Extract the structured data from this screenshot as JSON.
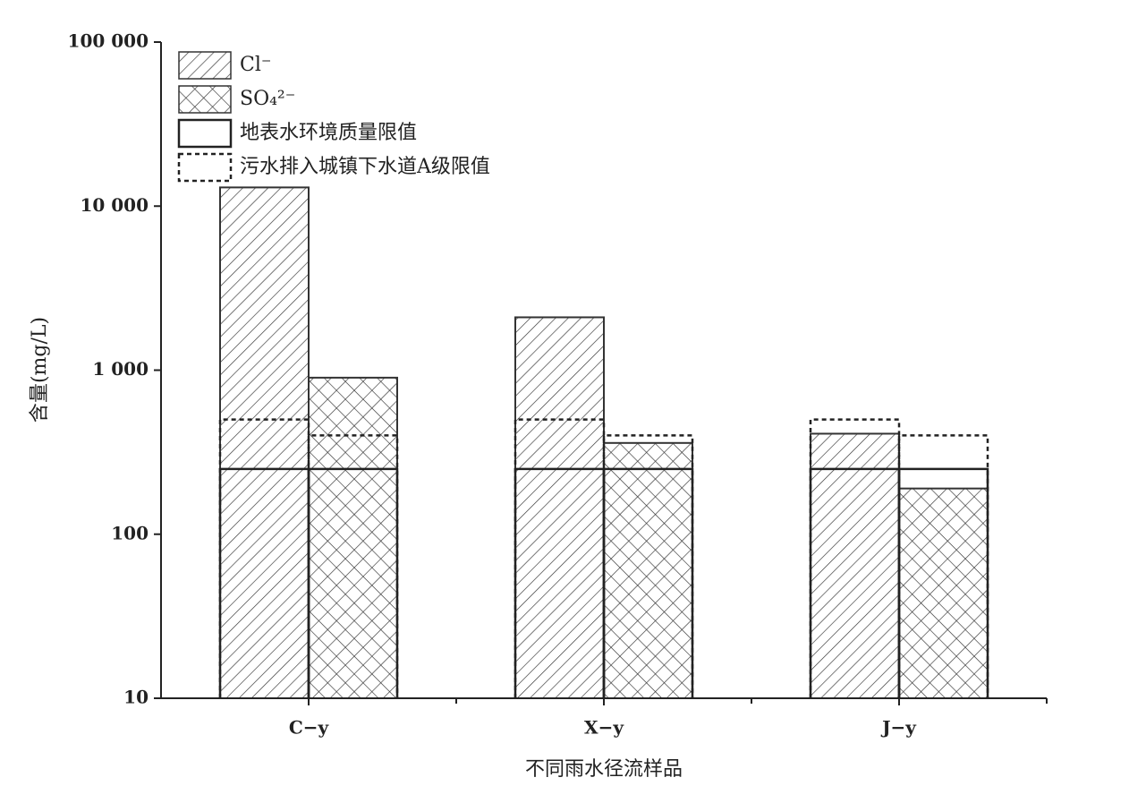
{
  "chart_data": {
    "type": "bar",
    "y_label": "含量(mg/L)",
    "x_label": "不同雨水径流样品",
    "categories": [
      "C−y",
      "X−y",
      "J−y"
    ],
    "log_y": true,
    "ylim": [
      10,
      100000
    ],
    "yticks": [
      10,
      100,
      {
        "value": 1000,
        "label": "1 000"
      },
      {
        "value": 10000,
        "label": "10 000"
      },
      {
        "value": 100000,
        "label": "100 000"
      }
    ],
    "series": [
      {
        "name": "Cl⁻",
        "pattern": "hatch",
        "color": "#333333",
        "values": [
          13000,
          2100,
          410
        ]
      },
      {
        "name": "SO₄²⁻",
        "pattern": "crosshatch",
        "color": "#333333",
        "values": [
          900,
          360,
          190
        ]
      }
    ],
    "limits": [
      {
        "name": "地表水环境质量限值",
        "style": "solid",
        "values": [
          250,
          250
        ]
      },
      {
        "name": "污水排入城镇下水道A级限值",
        "style": "dashed",
        "values": [
          500,
          400
        ]
      }
    ]
  }
}
